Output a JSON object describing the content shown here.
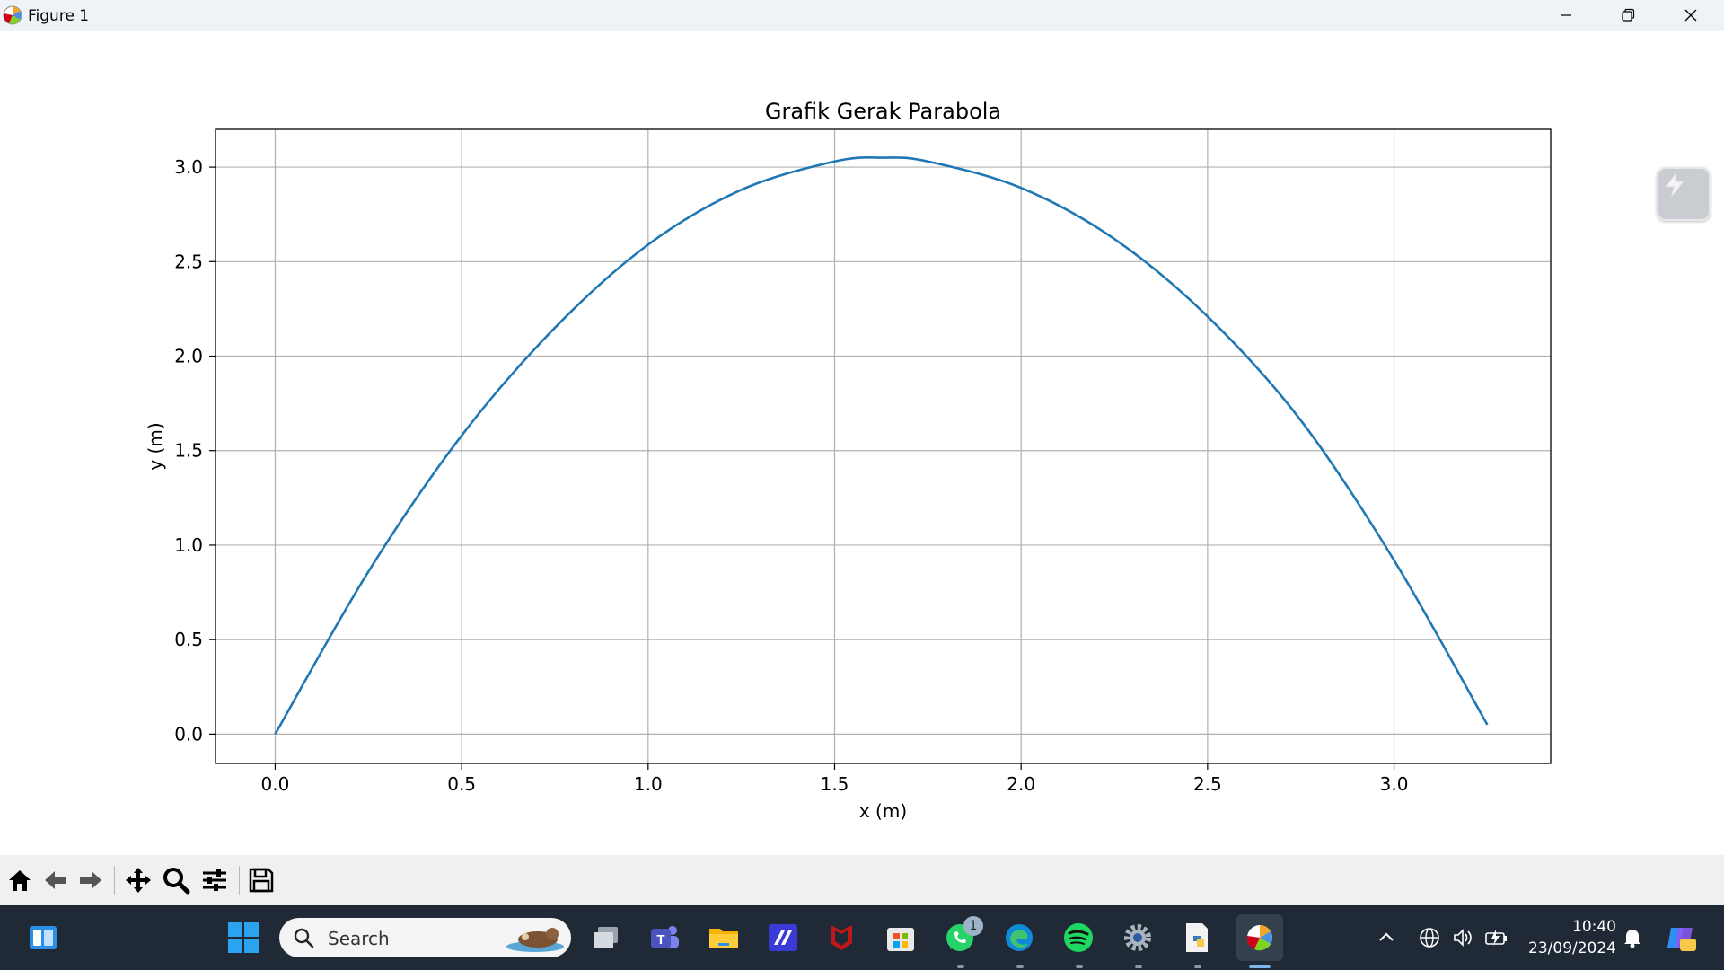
{
  "window": {
    "title": "Figure 1"
  },
  "chart_data": {
    "type": "line",
    "title": "Grafik Gerak Parabola",
    "xlabel": "x (m)",
    "ylabel": "y (m)",
    "xlim": [
      -0.16,
      3.42
    ],
    "ylim": [
      -0.155,
      3.2
    ],
    "xticks": [
      "0.0",
      "0.5",
      "1.0",
      "1.5",
      "2.0",
      "2.5",
      "3.0"
    ],
    "xtick_values": [
      0.0,
      0.5,
      1.0,
      1.5,
      2.0,
      2.5,
      3.0
    ],
    "yticks": [
      "0.0",
      "0.5",
      "1.0",
      "1.5",
      "2.0",
      "2.5",
      "3.0"
    ],
    "ytick_values": [
      0.0,
      0.5,
      1.0,
      1.5,
      2.0,
      2.5,
      3.0
    ],
    "grid": true,
    "series": [
      {
        "color": "#1f77b4",
        "x": [
          0.0,
          0.25,
          0.5,
          0.75,
          1.0,
          1.25,
          1.5,
          1.63,
          1.75,
          2.0,
          2.25,
          2.5,
          2.75,
          3.0,
          3.25
        ],
        "y": [
          0.0,
          0.86,
          1.58,
          2.15,
          2.59,
          2.88,
          3.03,
          3.05,
          3.03,
          2.89,
          2.62,
          2.21,
          1.66,
          0.92,
          0.05
        ]
      }
    ]
  },
  "taskbar": {
    "search_label": "Search",
    "whatsapp_badge": "1",
    "time": "10:40",
    "date": "23/09/2024"
  }
}
